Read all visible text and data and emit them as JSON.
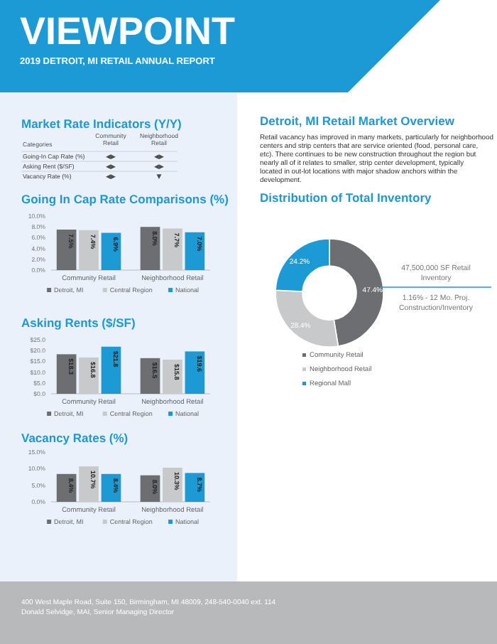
{
  "chart_data": [
    {
      "type": "other",
      "title": "VIEWPOINT",
      "subtitle": "2019 DETROIT, MI RETAIL ANNUAL REPORT"
    },
    {
      "type": "other",
      "title": "Market Rate Indicators (Y/Y)",
      "xlabel": "Categories",
      "categories": [
        "Community Retail",
        "Neighborhood Retail"
      ],
      "y_categories": [
        "Going-In Cap Rate (%)",
        "Asking Rent ($/SF)",
        "Vacancy Rate (%)"
      ],
      "cell_labels": [
        [
          "◀▶",
          "◀▶"
        ],
        [
          "◀▶",
          "◀▶"
        ],
        [
          "◀▶",
          "▼"
        ]
      ]
    },
    {
      "type": "bar",
      "title": "Going In Cap Rate Comparisons (%)",
      "categories": [
        "Community Retail",
        "Neighborhood Retail"
      ],
      "ylim": [
        0,
        10
      ],
      "yticks": [
        {
          "value": 0,
          "label": "0.0%"
        },
        {
          "value": 2,
          "label": "2.0%"
        },
        {
          "value": 4,
          "label": "4.0%"
        },
        {
          "value": 6,
          "label": "6.0%"
        },
        {
          "value": 8,
          "label": "8.0%"
        },
        {
          "value": 10,
          "label": "10.0%"
        }
      ],
      "legend": "bottom",
      "series": [
        {
          "name": "Detroit, MI",
          "color": "#6d6e71",
          "values": [
            7.5,
            8.0
          ],
          "value_labels": [
            "7.5%",
            "8.0%"
          ]
        },
        {
          "name": "Central Region",
          "color": "#c8c9cb",
          "values": [
            7.4,
            7.7
          ],
          "value_labels": [
            "7.4%",
            "7.7%"
          ]
        },
        {
          "name": "National",
          "color": "#1b9ad6",
          "values": [
            6.9,
            7.0
          ],
          "value_labels": [
            "6.9%",
            "7.0%"
          ]
        }
      ]
    },
    {
      "type": "bar",
      "title": "Asking Rents ($/SF)",
      "categories": [
        "Community Retail",
        "Neighborhood Retail"
      ],
      "ylim": [
        0,
        25
      ],
      "yticks": [
        {
          "value": 0,
          "label": "$0.0"
        },
        {
          "value": 5,
          "label": "$5.0"
        },
        {
          "value": 10,
          "label": "$10.0"
        },
        {
          "value": 15,
          "label": "$15.0"
        },
        {
          "value": 20,
          "label": "$20.0"
        },
        {
          "value": 25,
          "label": "$25.0"
        }
      ],
      "legend": "bottom",
      "series": [
        {
          "name": "Detroit, MI",
          "color": "#6d6e71",
          "values": [
            18.3,
            16.5
          ],
          "value_labels": [
            "$18.3",
            "$16.5"
          ]
        },
        {
          "name": "Central Region",
          "color": "#c8c9cb",
          "values": [
            16.8,
            15.8
          ],
          "value_labels": [
            "$16.8",
            "$15.8"
          ]
        },
        {
          "name": "National",
          "color": "#1b9ad6",
          "values": [
            21.8,
            19.6
          ],
          "value_labels": [
            "$21.8",
            "$19.6"
          ]
        }
      ]
    },
    {
      "type": "bar",
      "title": "Vacancy Rates (%)",
      "categories": [
        "Community Retail",
        "Neighborhood Retail"
      ],
      "ylim": [
        0,
        15
      ],
      "yticks": [
        {
          "value": 0,
          "label": "0.0%"
        },
        {
          "value": 5,
          "label": "5.0%"
        },
        {
          "value": 10,
          "label": "10.0%"
        },
        {
          "value": 15,
          "label": "15.0%"
        }
      ],
      "legend": "bottom",
      "series": [
        {
          "name": "Detroit, MI",
          "color": "#6d6e71",
          "values": [
            8.4,
            8.0
          ],
          "value_labels": [
            "8.4%",
            "8.0%"
          ]
        },
        {
          "name": "Central Region",
          "color": "#c8c9cb",
          "values": [
            10.7,
            10.3
          ],
          "value_labels": [
            "10.7%",
            "10.3%"
          ]
        },
        {
          "name": "National",
          "color": "#1b9ad6",
          "values": [
            8.4,
            8.7
          ],
          "value_labels": [
            "8.4%",
            "8.7%"
          ]
        }
      ]
    },
    {
      "type": "other",
      "title": "Detroit, MI Retail Market Overview",
      "annotations": [
        "Retail vacancy has improved in many markets, particularly for neighborhood centers and strip centers that are service oriented (food, personal care, etc). There continues to be new construction throughout the region but nearly all of it relates to smaller, strip center development, typically located in out-lot locations with major shadow anchors within the development."
      ]
    },
    {
      "type": "donut",
      "title": "Distribution of Total Inventory",
      "categories": [
        "Community Retail",
        "Neighborhood Retail",
        "Regional Mall"
      ],
      "values": [
        47.4,
        28.4,
        24.2
      ],
      "colors": [
        "#6d6e71",
        "#c8c9cb",
        "#1b9ad6"
      ],
      "value_labels": [
        "47.4%",
        "28.4%",
        "24.2%"
      ],
      "legend": "bottom",
      "annotations": [
        "47,500,000 SF Retail Inventory",
        "1.16% - 12 Mo. Proj. Construction/Inventory"
      ]
    },
    {
      "type": "other",
      "annotations": [
        "400 West Maple Road, Suite 150, Birmingham, MI 48009, 248-540-0040 ext. 114",
        "Donald Selvidge, MAI, Senior Managing Director"
      ]
    }
  ]
}
